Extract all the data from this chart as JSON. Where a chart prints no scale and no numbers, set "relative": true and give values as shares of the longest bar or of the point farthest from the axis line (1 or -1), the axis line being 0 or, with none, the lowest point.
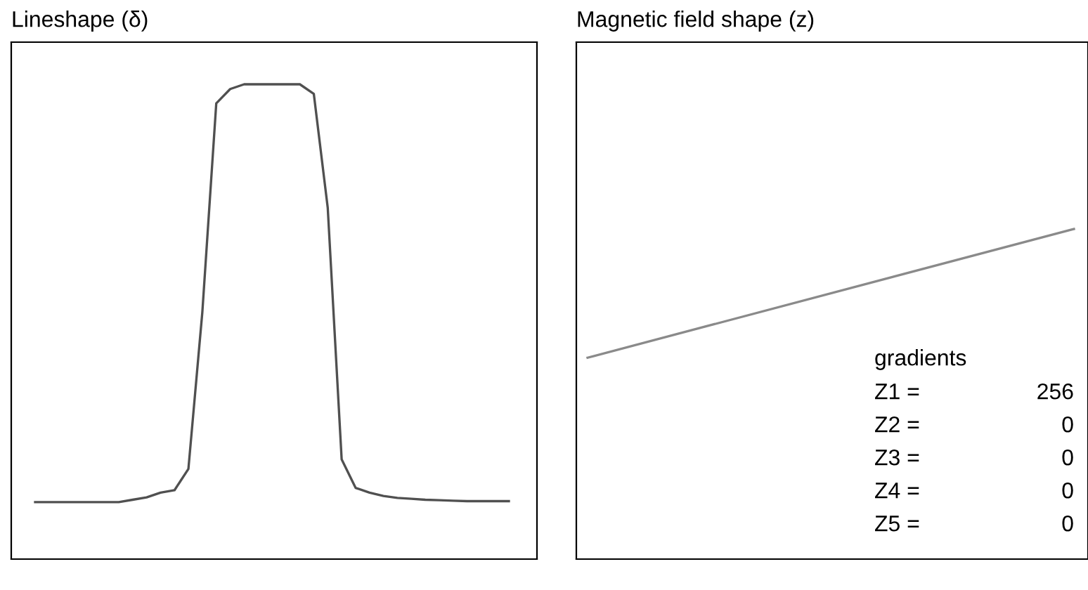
{
  "chart_data": [
    {
      "type": "line",
      "title": "Lineshape (δ)",
      "relative": true,
      "color": "#505050",
      "categories": [
        null,
        null,
        null,
        null,
        null,
        null,
        null,
        null,
        null,
        null,
        null,
        null,
        null,
        null,
        null,
        null,
        null,
        null,
        null,
        null,
        null,
        null,
        null,
        null,
        null,
        null,
        null,
        null,
        null,
        null,
        null,
        null,
        null,
        null,
        null
      ],
      "values": [
        0.12,
        0.12,
        0.12,
        0.12,
        0.12,
        0.12,
        0.12,
        0.125,
        0.13,
        0.14,
        0.145,
        0.19,
        0.52,
        0.96,
        0.99,
        1,
        1,
        1,
        1,
        1,
        0.98,
        0.74,
        0.21,
        0.15,
        0.14,
        0.133,
        0.129,
        0.127,
        0.125,
        0.124,
        0.123,
        0.122,
        0.122,
        0.122,
        0.122
      ]
    },
    {
      "type": "line",
      "title": "Magnetic field shape (z)",
      "relative": true,
      "color": "#8a8a8a",
      "categories": [
        null,
        null
      ],
      "values": [
        0.61,
        1
      ],
      "annotations": [
        "gradients",
        "Z1 =",
        "256",
        "Z2 =",
        "0",
        "Z3 =",
        "0",
        "Z4 =",
        "0",
        "Z5 =",
        "0"
      ]
    }
  ]
}
